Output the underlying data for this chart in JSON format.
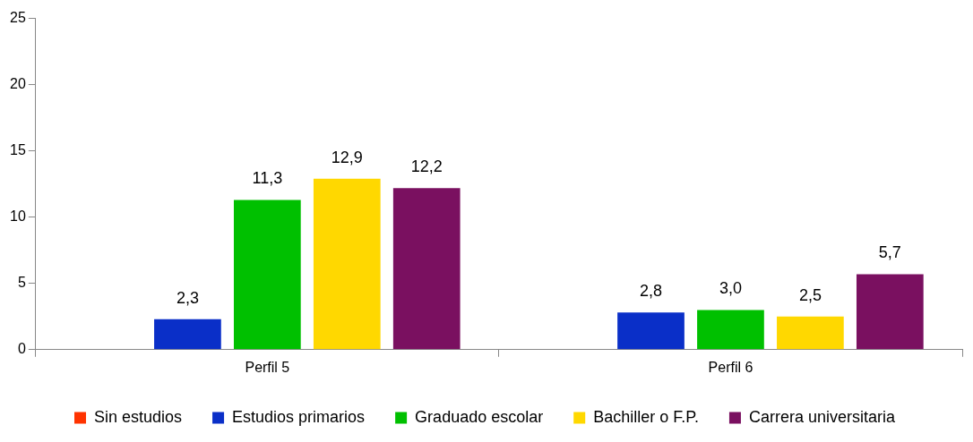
{
  "chart_data": {
    "type": "bar",
    "categories": [
      "Perfil 5",
      "Perfil 6"
    ],
    "series": [
      {
        "name": "Sin estudios",
        "color": "#ff3300",
        "values": [
          null,
          null
        ],
        "value_labels": [
          null,
          null
        ]
      },
      {
        "name": "Estudios primarios",
        "color": "#0a2fc8",
        "values": [
          2.3,
          2.8
        ],
        "value_labels": [
          "2,3",
          "2,8"
        ]
      },
      {
        "name": "Graduado escolar",
        "color": "#00c000",
        "values": [
          11.3,
          3.0
        ],
        "value_labels": [
          "11,3",
          "3,0"
        ]
      },
      {
        "name": "Bachiller o F.P.",
        "color": "#ffd800",
        "values": [
          12.9,
          2.5
        ],
        "value_labels": [
          "12,9",
          "2,5"
        ]
      },
      {
        "name": "Carrera universitaria",
        "color": "#7a1060",
        "values": [
          12.2,
          5.7
        ],
        "value_labels": [
          "12,2",
          "5,7"
        ]
      }
    ],
    "ylim": [
      0,
      25
    ],
    "yticks": [
      0,
      5,
      10,
      15,
      20,
      25
    ],
    "grid": false,
    "legend": "bottom"
  }
}
